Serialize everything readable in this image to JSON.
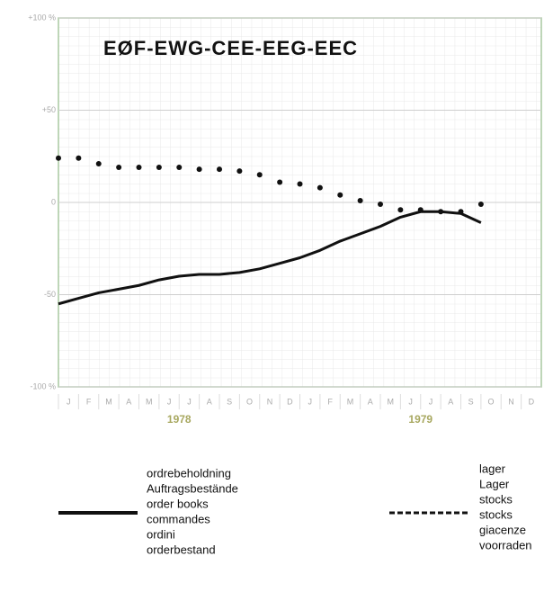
{
  "chart_data": {
    "type": "line",
    "title": "EØF-EWG-CEE-EEG-EEC",
    "categories": [
      "J",
      "F",
      "M",
      "A",
      "M",
      "J",
      "J",
      "A",
      "S",
      "O",
      "N",
      "D",
      "J",
      "F",
      "M",
      "A",
      "M",
      "J",
      "J",
      "A",
      "S",
      "O",
      "N",
      "D"
    ],
    "year_labels": [
      "1978",
      "1979"
    ],
    "ylim": [
      -100,
      100
    ],
    "yticks": [
      {
        "value": -100,
        "label": "-100 %"
      },
      -50,
      0,
      {
        "value": 50,
        "label": "+50"
      },
      {
        "value": 100,
        "label": "+100 %"
      }
    ],
    "grid": true,
    "series": [
      {
        "name": [
          "ordrebeholdning",
          "Auftragsbestände",
          "order books",
          "commandes",
          "ordini",
          "orderbestand"
        ],
        "color": "#111111",
        "style": "solid",
        "values": [
          -55,
          -52,
          -49,
          -47,
          -45,
          -42,
          -40,
          -39,
          -39,
          -38,
          -36,
          -33,
          -30,
          -26,
          -21,
          -17,
          -13,
          -8,
          -5,
          -5,
          -6,
          -11,
          null,
          null
        ]
      },
      {
        "name": [
          "lager",
          "Lager",
          "stocks",
          "stocks",
          "giacenze",
          "voorraden"
        ],
        "color": "#111111",
        "style": "dotted",
        "values": [
          24,
          24,
          21,
          19,
          19,
          19,
          19,
          18,
          18,
          17,
          15,
          11,
          10,
          8,
          4,
          1,
          -1,
          -4,
          -4,
          -5,
          -5,
          -1,
          null,
          null
        ]
      }
    ]
  }
}
